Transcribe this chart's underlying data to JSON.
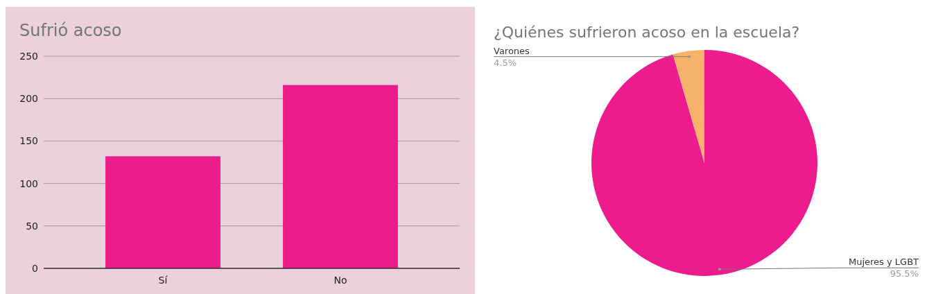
{
  "chart_data": [
    {
      "type": "bar",
      "title": "Sufrió acoso",
      "categories": [
        "Sí",
        "No"
      ],
      "values": [
        132,
        216
      ],
      "color": "#ec1c8f",
      "ylim": [
        0,
        250
      ],
      "yticks": [
        0,
        50,
        100,
        150,
        200,
        250
      ],
      "grid": true
    },
    {
      "type": "pie",
      "title": "¿Quiénes sufrieron acoso en la escuela?",
      "categories": [
        "Mujeres y LGBT",
        "Varones"
      ],
      "values": [
        95.5,
        4.5
      ],
      "colors": [
        "#ec1c8f",
        "#f6b26b"
      ],
      "value_labels": [
        "95.5%",
        "4.5%"
      ]
    }
  ]
}
